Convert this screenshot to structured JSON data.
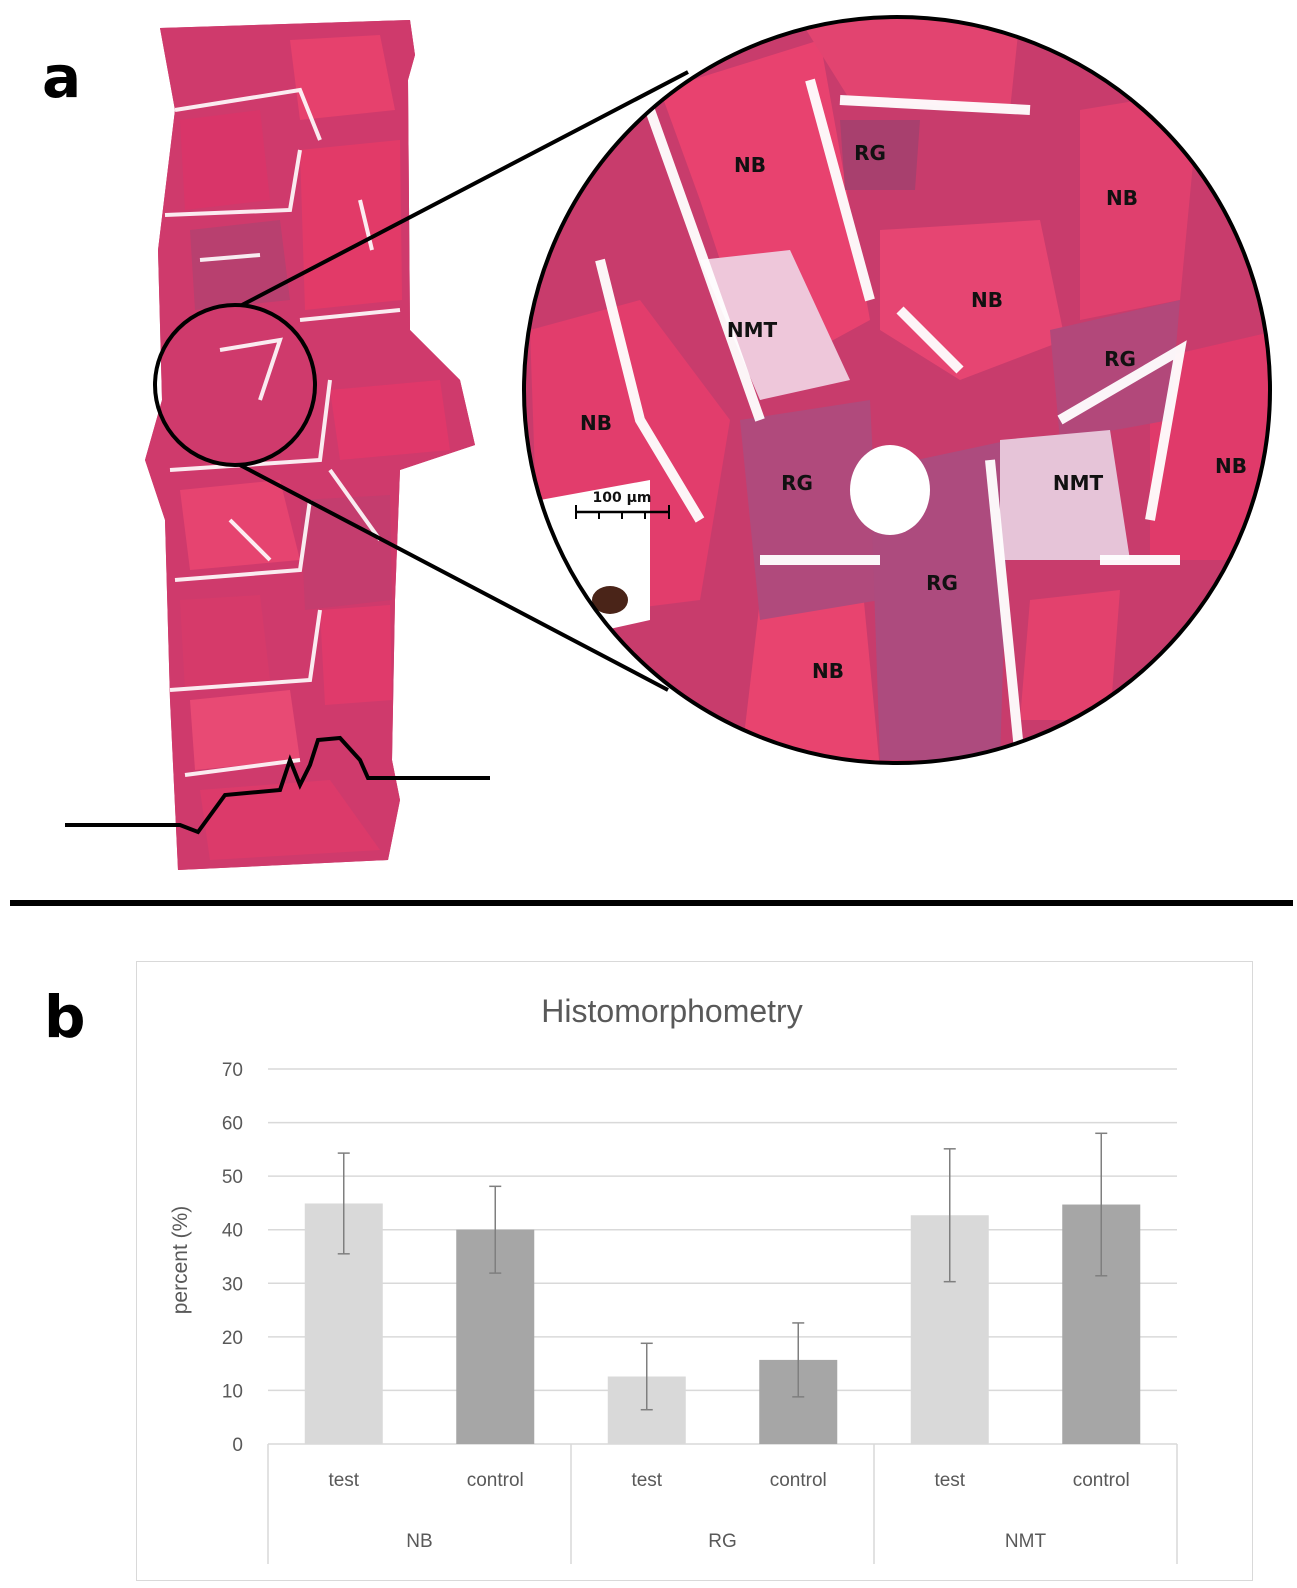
{
  "figure": {
    "panel_a_label": "a",
    "panel_b_label": "b",
    "inset_labels": [
      "NB",
      "RG",
      "NB",
      "NB",
      "NMT",
      "RG",
      "NB",
      "RG",
      "NMT",
      "NB",
      "RG",
      "NB"
    ],
    "scale_bar_label": "100 µm",
    "colors": {
      "tissue_pink": "#e0356a",
      "tissue_purple": "#b4477e",
      "outline": "#000000"
    }
  },
  "chart_data": {
    "type": "bar",
    "title": "Histomorphometry",
    "ylabel": "percent (%)",
    "xlabel": "",
    "ylim": [
      0,
      70
    ],
    "yticks": [
      0,
      10,
      20,
      30,
      40,
      50,
      60,
      70
    ],
    "groups": [
      "NB",
      "RG",
      "NMT"
    ],
    "categories": [
      "test",
      "control",
      "test",
      "control",
      "test",
      "control"
    ],
    "values": [
      44.9,
      40.0,
      12.6,
      15.7,
      42.7,
      44.7
    ],
    "error": [
      9.4,
      8.1,
      6.2,
      6.9,
      12.4,
      13.3
    ],
    "colors": [
      "#d9d9d9",
      "#a6a6a6",
      "#d9d9d9",
      "#a6a6a6",
      "#d9d9d9",
      "#a6a6a6"
    ],
    "grid": true,
    "legend": "none"
  }
}
